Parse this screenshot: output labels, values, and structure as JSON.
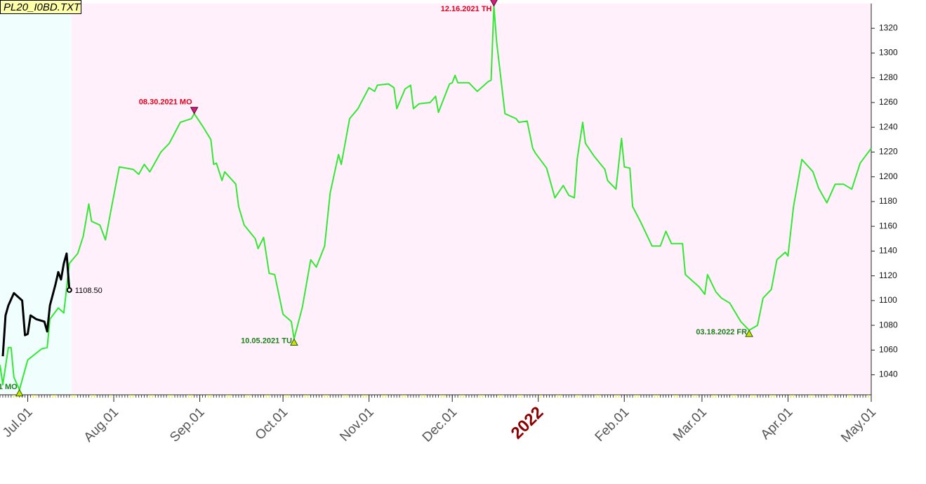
{
  "chart_data": {
    "type": "line",
    "title": "PL20_I0BD.TXT",
    "xlim": [
      "2021-06-21",
      "2022-05-01"
    ],
    "xticks": [
      {
        "value": "2021-07-01",
        "label": "Jul.01"
      },
      {
        "value": "2021-08-01",
        "label": "Aug.01"
      },
      {
        "value": "2021-09-01",
        "label": "Sep.01"
      },
      {
        "value": "2021-10-01",
        "label": "Oct.01"
      },
      {
        "value": "2021-11-01",
        "label": "Nov.01"
      },
      {
        "value": "2021-12-01",
        "label": "Dec.01"
      },
      {
        "value": "2022-01-01",
        "label": "2022"
      },
      {
        "value": "2022-02-01",
        "label": "Feb.01"
      },
      {
        "value": "2022-03-01",
        "label": "Mar.01"
      },
      {
        "value": "2022-04-01",
        "label": "Apr.01"
      },
      {
        "value": "2022-05-01",
        "label": "May.01"
      }
    ],
    "ylim": [
      1025,
      1340
    ],
    "yticks": [
      1040,
      1060,
      1080,
      1100,
      1120,
      1140,
      1160,
      1180,
      1200,
      1220,
      1240,
      1260,
      1280,
      1300,
      1320
    ],
    "series": [
      {
        "color": "#33e833",
        "x": [
          "2021-06-21",
          "2021-06-22",
          "2021-06-24",
          "2021-06-25",
          "2021-06-26",
          "2021-06-28",
          "2021-07-01",
          "2021-07-06",
          "2021-07-08",
          "2021-07-09",
          "2021-07-12",
          "2021-07-14",
          "2021-07-16",
          "2021-07-19",
          "2021-07-21",
          "2021-07-23",
          "2021-07-24",
          "2021-07-27",
          "2021-07-29",
          "2021-07-31",
          "2021-08-03",
          "2021-08-08",
          "2021-08-10",
          "2021-08-12",
          "2021-08-14",
          "2021-08-18",
          "2021-08-21",
          "2021-08-25",
          "2021-08-29",
          "2021-08-30",
          "2021-09-02",
          "2021-09-05",
          "2021-09-06",
          "2021-09-07",
          "2021-09-09",
          "2021-09-10",
          "2021-09-14",
          "2021-09-15",
          "2021-09-17",
          "2021-09-21",
          "2021-09-22",
          "2021-09-24",
          "2021-09-26",
          "2021-09-28",
          "2021-10-01",
          "2021-10-04",
          "2021-10-05",
          "2021-10-08",
          "2021-10-11",
          "2021-10-13",
          "2021-10-16",
          "2021-10-18",
          "2021-10-21",
          "2021-10-22",
          "2021-10-25",
          "2021-10-28",
          "2021-11-01",
          "2021-11-03",
          "2021-11-04",
          "2021-11-08",
          "2021-11-10",
          "2021-11-11",
          "2021-11-14",
          "2021-11-16",
          "2021-11-17",
          "2021-11-19",
          "2021-11-23",
          "2021-11-25",
          "2021-11-26",
          "2021-11-30",
          "2021-12-01",
          "2021-12-02",
          "2021-12-03",
          "2021-12-07",
          "2021-12-10",
          "2021-12-14",
          "2021-12-15",
          "2021-12-16",
          "2021-12-17",
          "2021-12-20",
          "2021-12-24",
          "2021-12-25",
          "2021-12-28",
          "2021-12-30",
          "2021-12-31",
          "2022-01-04",
          "2022-01-07",
          "2022-01-10",
          "2022-01-12",
          "2022-01-14",
          "2022-01-15",
          "2022-01-17",
          "2022-01-18",
          "2022-01-21",
          "2022-01-25",
          "2022-01-26",
          "2022-01-29",
          "2022-01-31",
          "2022-02-01",
          "2022-02-03",
          "2022-02-04",
          "2022-02-07",
          "2022-02-11",
          "2022-02-14",
          "2022-02-16",
          "2022-02-18",
          "2022-02-22",
          "2022-02-23",
          "2022-02-27",
          "2022-02-28",
          "2022-03-02",
          "2022-03-03",
          "2022-03-06",
          "2022-03-08",
          "2022-03-11",
          "2022-03-15",
          "2022-03-18",
          "2022-03-21",
          "2022-03-23",
          "2022-03-26",
          "2022-03-28",
          "2022-03-31",
          "2022-04-01",
          "2022-04-03",
          "2022-04-06",
          "2022-04-10",
          "2022-04-12",
          "2022-04-15",
          "2022-04-18",
          "2022-04-21",
          "2022-04-24",
          "2022-04-27",
          "2022-04-29",
          "2022-05-01"
        ],
        "values": [
          1048,
          1032,
          1062,
          1062,
          1038,
          1028,
          1052,
          1061,
          1062,
          1085,
          1094,
          1090,
          1130,
          1138,
          1152,
          1178,
          1164,
          1161,
          1149,
          1173,
          1208,
          1206,
          1202,
          1210,
          1204,
          1220,
          1227,
          1244,
          1247,
          1251,
          1241,
          1230,
          1210,
          1211,
          1197,
          1204,
          1194,
          1176,
          1161,
          1150,
          1142,
          1151,
          1122,
          1121,
          1089,
          1083,
          1069,
          1095,
          1133,
          1127,
          1144,
          1187,
          1218,
          1210,
          1247,
          1255,
          1272,
          1269,
          1274,
          1275,
          1272,
          1255,
          1271,
          1274,
          1255,
          1259,
          1260,
          1265,
          1252,
          1275,
          1276,
          1282,
          1276,
          1276,
          1269,
          1277,
          1278,
          1338,
          1309,
          1251,
          1247,
          1244,
          1245,
          1223,
          1219,
          1207,
          1183,
          1193,
          1185,
          1183,
          1214,
          1244,
          1227,
          1217,
          1206,
          1197,
          1190,
          1231,
          1208,
          1207,
          1176,
          1163,
          1144,
          1144,
          1156,
          1146,
          1146,
          1121,
          1113,
          1111,
          1105,
          1121,
          1107,
          1102,
          1098,
          1083,
          1076,
          1080,
          1102,
          1109,
          1133,
          1139,
          1136,
          1176,
          1214,
          1204,
          1191,
          1179,
          1194,
          1194,
          1190,
          1211,
          1217,
          1223
        ]
      },
      {
        "color": "#000000",
        "x": [
          "2021-06-22",
          "2021-06-23",
          "2021-06-24",
          "2021-06-26",
          "2021-06-29",
          "2021-06-30",
          "2021-07-01",
          "2021-07-02",
          "2021-07-04",
          "2021-07-07",
          "2021-07-08",
          "2021-07-09",
          "2021-07-11",
          "2021-07-12",
          "2021-07-13",
          "2021-07-14",
          "2021-07-15",
          "2021-07-16"
        ],
        "values": [
          1055,
          1088,
          1096,
          1106,
          1100,
          1072,
          1073,
          1088,
          1085,
          1083,
          1075,
          1096,
          1113,
          1123,
          1117,
          1130,
          1138,
          1108.5
        ],
        "value_labels": [
          null,
          null,
          null,
          null,
          null,
          null,
          null,
          null,
          null,
          null,
          null,
          null,
          null,
          null,
          null,
          null,
          null,
          "1108.50"
        ]
      }
    ],
    "annotations": [
      {
        "text": "1 MO",
        "x": "2021-06-28",
        "y": 1028,
        "marker": "up",
        "color": "#1a7f1a"
      },
      {
        "text": "08.30.2021 MO",
        "x": "2021-08-30",
        "y": 1251,
        "marker": "down",
        "color": "#e8001c"
      },
      {
        "text": "10.05.2021 TU",
        "x": "2021-10-05",
        "y": 1069,
        "marker": "up",
        "color": "#1a7f1a"
      },
      {
        "text": "12.16.2021 TH",
        "x": "2021-12-16",
        "y": 1338,
        "marker": "down",
        "color": "#e8001c"
      },
      {
        "text": "03.18.2022 FR",
        "x": "2022-03-18",
        "y": 1076,
        "marker": "up",
        "color": "#1a7f1a"
      }
    ]
  }
}
